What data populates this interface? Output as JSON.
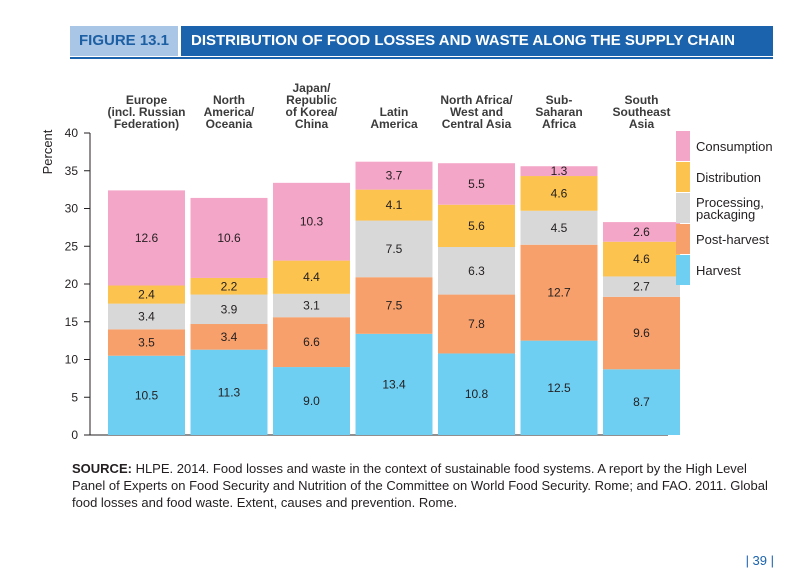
{
  "figure": {
    "label": "FIGURE 13.1",
    "title": "DISTRIBUTION OF FOOD LOSSES AND WASTE ALONG THE SUPPLY CHAIN"
  },
  "chart_data": {
    "type": "bar",
    "stacked": true,
    "title": "DISTRIBUTION OF FOOD LOSSES AND WASTE ALONG THE SUPPLY CHAIN",
    "ylabel": "Percent",
    "xlabel": "",
    "ylim": [
      0,
      40
    ],
    "yticks": [
      0,
      5,
      10,
      15,
      20,
      25,
      30,
      35,
      40
    ],
    "grid": false,
    "legend_position": "right",
    "categories": [
      [
        "Europe",
        "(incl. Russian",
        "Federation)"
      ],
      [
        "North",
        "America/",
        "Oceania"
      ],
      [
        "Japan/",
        "Republic",
        "of Korea/",
        "China"
      ],
      [
        "Latin",
        "America"
      ],
      [
        "North Africa/",
        "West and",
        "Central Asia"
      ],
      [
        "Sub-",
        "Saharan",
        "Africa"
      ],
      [
        "South",
        "Southeast",
        "Asia"
      ]
    ],
    "series": [
      {
        "name": "Harvest",
        "color": "#6fcff2",
        "values": [
          10.5,
          11.3,
          9.0,
          13.4,
          10.8,
          12.5,
          8.7
        ]
      },
      {
        "name": "Post-harvest",
        "color": "#f7a06b",
        "values": [
          3.5,
          3.4,
          6.6,
          7.5,
          7.8,
          12.7,
          9.6
        ]
      },
      {
        "name": "Processing, packaging",
        "color": "#d8d8d8",
        "values": [
          3.4,
          3.9,
          3.1,
          7.5,
          6.3,
          4.5,
          2.7
        ]
      },
      {
        "name": "Distribution",
        "color": "#fcc34f",
        "values": [
          2.4,
          2.2,
          4.4,
          4.1,
          5.6,
          4.6,
          4.6
        ]
      },
      {
        "name": "Consumption",
        "color": "#f4a6c8",
        "values": [
          12.6,
          10.6,
          10.3,
          3.7,
          5.5,
          1.3,
          2.6
        ]
      }
    ],
    "legend_order": [
      "Consumption",
      "Distribution",
      "Processing, packaging",
      "Post-harvest",
      "Harvest"
    ],
    "legend_labels": {
      "Consumption": [
        "Consumption"
      ],
      "Distribution": [
        "Distribution"
      ],
      "Processing, packaging": [
        "Processing,",
        "packaging"
      ],
      "Post-harvest": [
        "Post-harvest"
      ],
      "Harvest": [
        "Harvest"
      ]
    }
  },
  "source": {
    "label": "SOURCE:",
    "text": " HLPE. 2014. Food losses and waste in the context of sustainable food systems. A report by the High Level Panel of Experts on Food Security and Nutrition of the Committee on World Food Security. Rome; and FAO. 2011. Global food losses and food waste. Extent, causes and prevention. Rome."
  },
  "page_number": "| 39 |"
}
